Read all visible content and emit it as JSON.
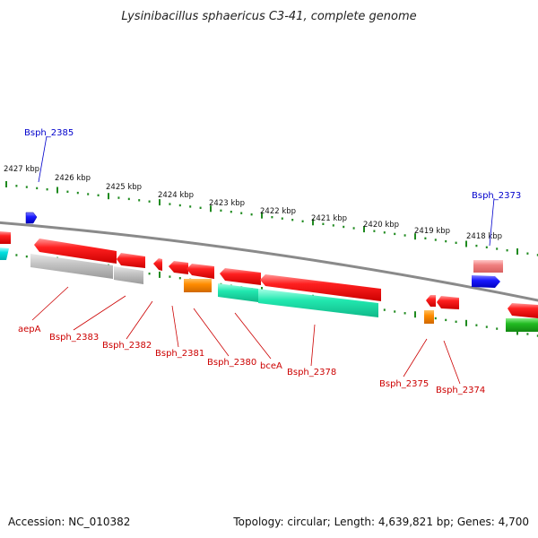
{
  "title": "Lysinibacillus sphaericus C3-41, complete genome",
  "footer": {
    "accession": "Accession: NC_010382",
    "summary": "Topology: circular; Length: 4,639,821 bp; Genes: 4,700"
  },
  "colors": {
    "backbone": "#8a8a8a",
    "tick": "#1f8a1f",
    "plus_label": "#0000cc",
    "minus_label": "#cc0000",
    "cds_red": "#ee1111",
    "grey": "#bbbbbb",
    "cyan": "#22e8b0",
    "orange": "#ff8c00",
    "green": "#22bb22",
    "blue": "#1a1aff",
    "pink": "#f08080"
  },
  "kbp_labels": [
    {
      "text": "2427 kbp"
    },
    {
      "text": "2426 kbp"
    },
    {
      "text": "2425 kbp"
    },
    {
      "text": "2424 kbp"
    },
    {
      "text": "2423 kbp"
    },
    {
      "text": "2422 kbp"
    },
    {
      "text": "2421 kbp"
    },
    {
      "text": "2420 kbp"
    },
    {
      "text": "2419 kbp"
    },
    {
      "text": "2418 kbp"
    }
  ],
  "gene_labels": [
    {
      "text": "Bsph_2385",
      "strand": "plus"
    },
    {
      "text": "Bsph_2373",
      "strand": "plus"
    },
    {
      "text": "aepA",
      "strand": "minus"
    },
    {
      "text": "Bsph_2383",
      "strand": "minus"
    },
    {
      "text": "Bsph_2382",
      "strand": "minus"
    },
    {
      "text": "Bsph_2381",
      "strand": "minus"
    },
    {
      "text": "Bsph_2380",
      "strand": "minus"
    },
    {
      "text": "bceA",
      "strand": "minus"
    },
    {
      "text": "Bsph_2378",
      "strand": "minus"
    },
    {
      "text": "Bsph_2375",
      "strand": "minus"
    },
    {
      "text": "Bsph_2374",
      "strand": "minus"
    }
  ]
}
